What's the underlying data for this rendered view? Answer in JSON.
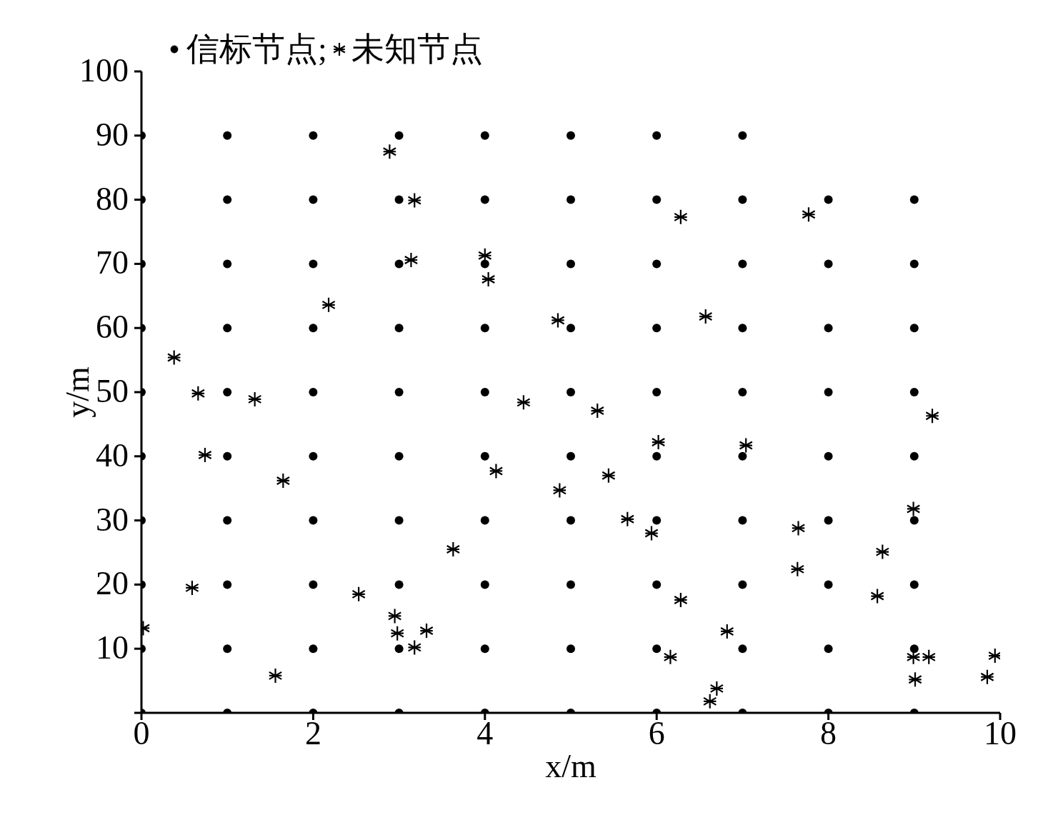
{
  "chart_data": {
    "type": "scatter",
    "xlabel": "x/m",
    "ylabel": "y/m",
    "xlim": [
      0,
      10
    ],
    "ylim": [
      0,
      100
    ],
    "xticks": [
      0,
      2,
      4,
      6,
      8,
      10
    ],
    "yticks": [
      {
        "value": 0,
        "label": null
      },
      10,
      20,
      30,
      40,
      50,
      60,
      70,
      80,
      90,
      100
    ],
    "grid": false,
    "legend": "top left",
    "series": [
      {
        "name": "信标节点;",
        "color": "#000000",
        "marker": "circle",
        "x": [
          0,
          1,
          2,
          3,
          4,
          5,
          6,
          7,
          0,
          1,
          2,
          3,
          4,
          5,
          6,
          7,
          8,
          9,
          0,
          1,
          2,
          3,
          4,
          5,
          6,
          7,
          8,
          9,
          0,
          1,
          2,
          3,
          4,
          5,
          6,
          7,
          8,
          9,
          0,
          1,
          2,
          3,
          4,
          5,
          6,
          7,
          8,
          9,
          0,
          1,
          2,
          3,
          4,
          5,
          6,
          7,
          8,
          9,
          0,
          1,
          2,
          3,
          4,
          5,
          6,
          7,
          8,
          9,
          0,
          1,
          2,
          3,
          4,
          5,
          6,
          7,
          8,
          9,
          0,
          1,
          2,
          3,
          4,
          5,
          6,
          7,
          8,
          9,
          0,
          1,
          2,
          3,
          4,
          5,
          6,
          7,
          8,
          9
        ],
        "values": [
          90,
          90,
          90,
          90,
          90,
          90,
          90,
          90,
          80,
          80,
          80,
          80,
          80,
          80,
          80,
          80,
          80,
          80,
          70,
          70,
          70,
          70,
          70,
          70,
          70,
          70,
          70,
          70,
          60,
          60,
          60,
          60,
          60,
          60,
          60,
          60,
          60,
          60,
          50,
          50,
          50,
          50,
          50,
          50,
          50,
          50,
          50,
          50,
          40,
          40,
          40,
          40,
          40,
          40,
          40,
          40,
          40,
          40,
          30,
          30,
          30,
          30,
          30,
          30,
          30,
          30,
          30,
          30,
          20,
          20,
          20,
          20,
          20,
          20,
          20,
          20,
          20,
          20,
          10,
          10,
          10,
          10,
          10,
          10,
          10,
          10,
          10,
          10,
          0,
          0,
          0,
          0,
          0,
          0,
          0,
          0,
          0,
          0
        ]
      },
      {
        "name": "未知节点",
        "color": "#000000",
        "marker": "cross",
        "x": [
          0.02,
          0.38,
          0.66,
          0.74,
          0.59,
          1.32,
          1.65,
          1.56,
          2.18,
          2.53,
          2.89,
          3.18,
          3.14,
          2.95,
          2.98,
          3.18,
          3.32,
          3.63,
          4.0,
          4.04,
          4.13,
          4.45,
          4.85,
          4.87,
          5.31,
          5.44,
          5.66,
          5.94,
          6.02,
          6.28,
          6.28,
          6.16,
          6.57,
          6.82,
          7.04,
          6.7,
          6.62,
          7.77,
          7.65,
          7.64,
          8.57,
          8.63,
          8.99,
          9.21,
          8.99,
          9.17,
          9.01,
          9.94,
          9.85
        ],
        "values": [
          13.2,
          55.4,
          49.8,
          40.2,
          19.5,
          48.9,
          36.2,
          5.8,
          63.6,
          18.5,
          87.5,
          79.9,
          70.6,
          15.1,
          12.4,
          10.2,
          12.8,
          25.5,
          71.3,
          67.6,
          37.7,
          48.4,
          61.2,
          34.7,
          47.1,
          37.0,
          30.2,
          28.0,
          42.2,
          77.3,
          17.6,
          8.7,
          61.8,
          12.7,
          41.7,
          3.8,
          1.8,
          77.7,
          28.8,
          22.4,
          18.2,
          25.1,
          31.8,
          46.3,
          8.7,
          8.7,
          5.2,
          8.9,
          5.6
        ]
      }
    ]
  }
}
